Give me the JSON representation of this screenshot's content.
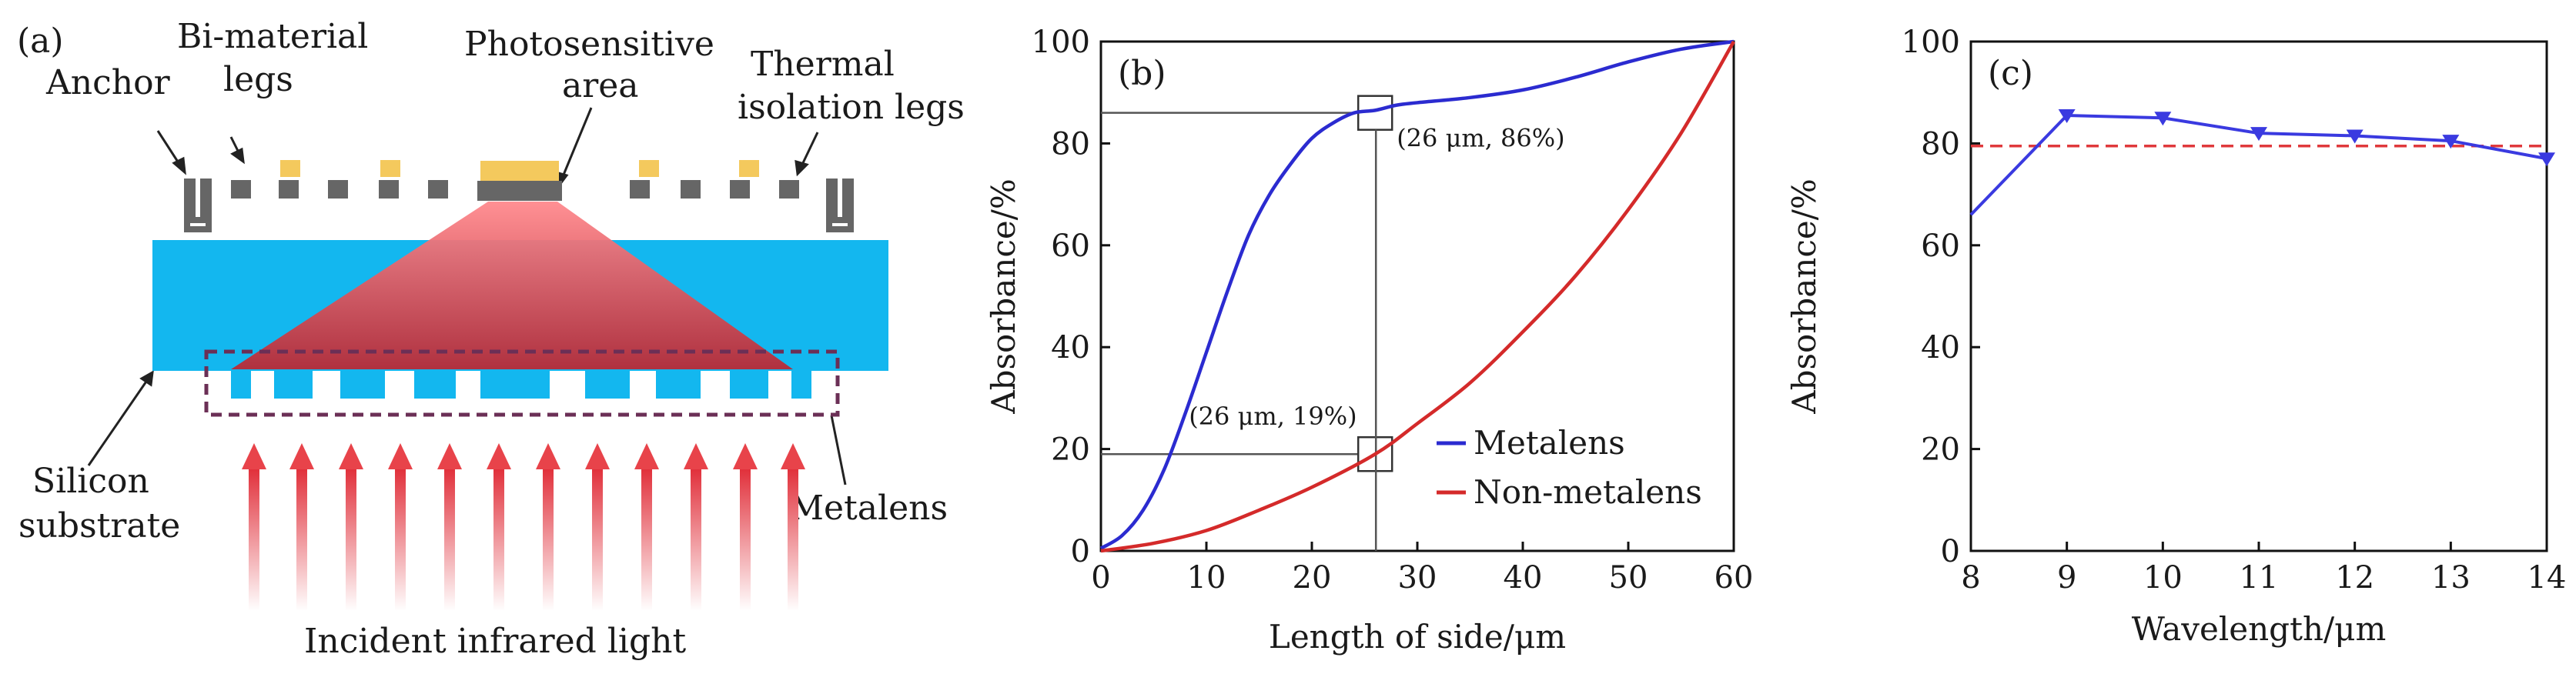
{
  "panel_a": {
    "panel_label": "(a)",
    "annotations": {
      "anchor": "Anchor",
      "bimaterial_line1": "Bi-material",
      "bimaterial_line2": "legs",
      "photosensitive_line1": "Photosensitive",
      "photosensitive_line2": "area",
      "thermal_line1": "Thermal",
      "thermal_line2": "isolation legs",
      "silicon_line1": "Silicon",
      "silicon_line2": "substrate",
      "metalens": "Metalens",
      "incident": "Incident infrared light"
    },
    "colors": {
      "substrate": "#13b7ef",
      "metal": "#666666",
      "gold": "#f4c95d",
      "beam": "#e8434a",
      "dash_box": "#6b2f56"
    }
  },
  "chart_data": [
    {
      "type": "line",
      "panel_label": "(b)",
      "xlabel": "Length of side/μm",
      "ylabel": "Absorbance/%",
      "xlim": [
        0,
        60
      ],
      "ylim": [
        0,
        100
      ],
      "xticks": [
        0,
        10,
        20,
        30,
        40,
        50,
        60
      ],
      "yticks": [
        0,
        20,
        40,
        60,
        80,
        100
      ],
      "legend_position": "lower-right",
      "series": [
        {
          "name": "Metalens",
          "color": "#2b2bd0",
          "x": [
            0,
            2,
            4,
            6,
            8,
            10,
            12,
            14,
            16,
            18,
            20,
            22,
            24,
            26,
            28,
            30,
            35,
            40,
            45,
            50,
            55,
            60
          ],
          "y": [
            0.5,
            3,
            8,
            16,
            27,
            39,
            51,
            62,
            70,
            76,
            81,
            84,
            86,
            86.5,
            87.5,
            88,
            89,
            90.5,
            93,
            96,
            98.5,
            100
          ]
        },
        {
          "name": "Non-metalens",
          "color": "#d42a2a",
          "x": [
            0,
            5,
            10,
            15,
            20,
            26,
            30,
            35,
            40,
            45,
            50,
            55,
            60
          ],
          "y": [
            0,
            1.5,
            4,
            8,
            12.5,
            19,
            25,
            33,
            43,
            54,
            67,
            82,
            100
          ]
        }
      ],
      "callouts": [
        {
          "text": "(26 μm, 86%)",
          "x": 26,
          "y": 86
        },
        {
          "text": "(26 μm, 19%)",
          "x": 26,
          "y": 19
        }
      ]
    },
    {
      "type": "line",
      "panel_label": "(c)",
      "xlabel": "Wavelength/μm",
      "ylabel": "Absorbance/%",
      "xlim": [
        8,
        14
      ],
      "ylim": [
        0,
        100
      ],
      "xticks": [
        8,
        9,
        10,
        11,
        12,
        13,
        14
      ],
      "yticks": [
        0,
        20,
        40,
        60,
        80,
        100
      ],
      "series": [
        {
          "color": "#3a3ae0",
          "x": [
            8,
            9,
            10,
            11,
            12,
            13,
            14
          ],
          "y": [
            66,
            85.5,
            85,
            82,
            81.5,
            80.5,
            77
          ]
        }
      ],
      "reference_line": {
        "y": 79.5,
        "color": "#e0393c",
        "style": "dashed"
      }
    }
  ]
}
